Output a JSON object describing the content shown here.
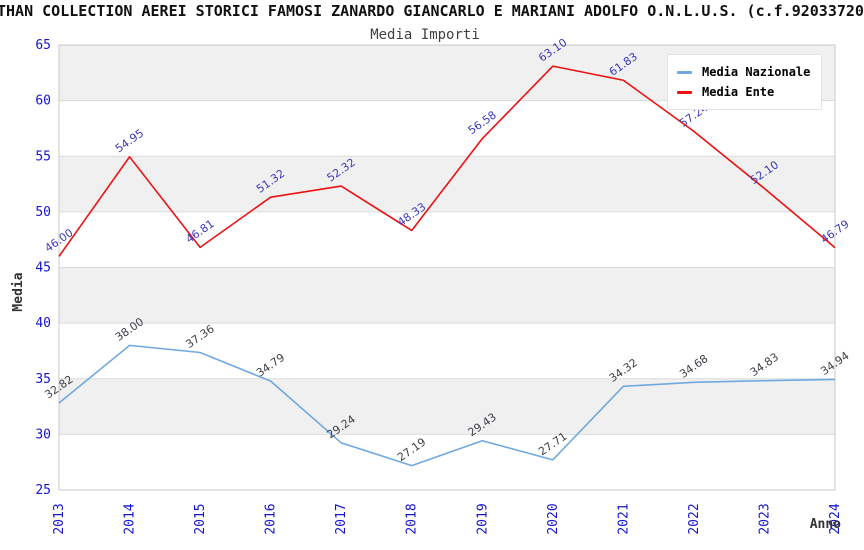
{
  "title": "THAN COLLECTION AEREI STORICI FAMOSI ZANARDO GIANCARLO E MARIANI ADOLFO O.N.L.U.S. (c.f.92033720",
  "subtitle": "Media Importi",
  "legend": {
    "items": [
      {
        "label": "Media Nazionale",
        "color": "#6FA9DF"
      },
      {
        "label": "Media Ente",
        "color": "#EE1111"
      }
    ]
  },
  "chart_data": {
    "type": "line",
    "title": "Media Importi",
    "xlabel": "Anno",
    "ylabel": "Media",
    "x": [
      2013,
      2014,
      2015,
      2016,
      2017,
      2018,
      2019,
      2020,
      2021,
      2022,
      2023,
      2024
    ],
    "series": [
      {
        "name": "Media Nazionale",
        "color": "#6FA9DF",
        "label_color": "#3F3F48",
        "values": [
          32.82,
          38.0,
          37.36,
          34.79,
          29.24,
          27.19,
          29.43,
          27.71,
          34.32,
          34.68,
          34.83,
          34.94
        ]
      },
      {
        "name": "Media Ente",
        "color": "#EE1111",
        "label_color": "#3A3ABD",
        "values": [
          46.0,
          54.95,
          46.81,
          51.32,
          52.32,
          48.33,
          56.58,
          63.1,
          61.83,
          57.24,
          52.1,
          46.79
        ]
      }
    ],
    "ylim": [
      25,
      65
    ],
    "ytick_step": 5,
    "grid": "horizontal-bands-alternating",
    "band_color": "#F0F0F0",
    "gridline_color": "#DCDCDC",
    "border_color": "#C8C8C8",
    "tick_label_color": "#1515CC",
    "axis_title_color": "#333333",
    "legend_position": "top-right",
    "value_labels": "shown-rotated"
  }
}
